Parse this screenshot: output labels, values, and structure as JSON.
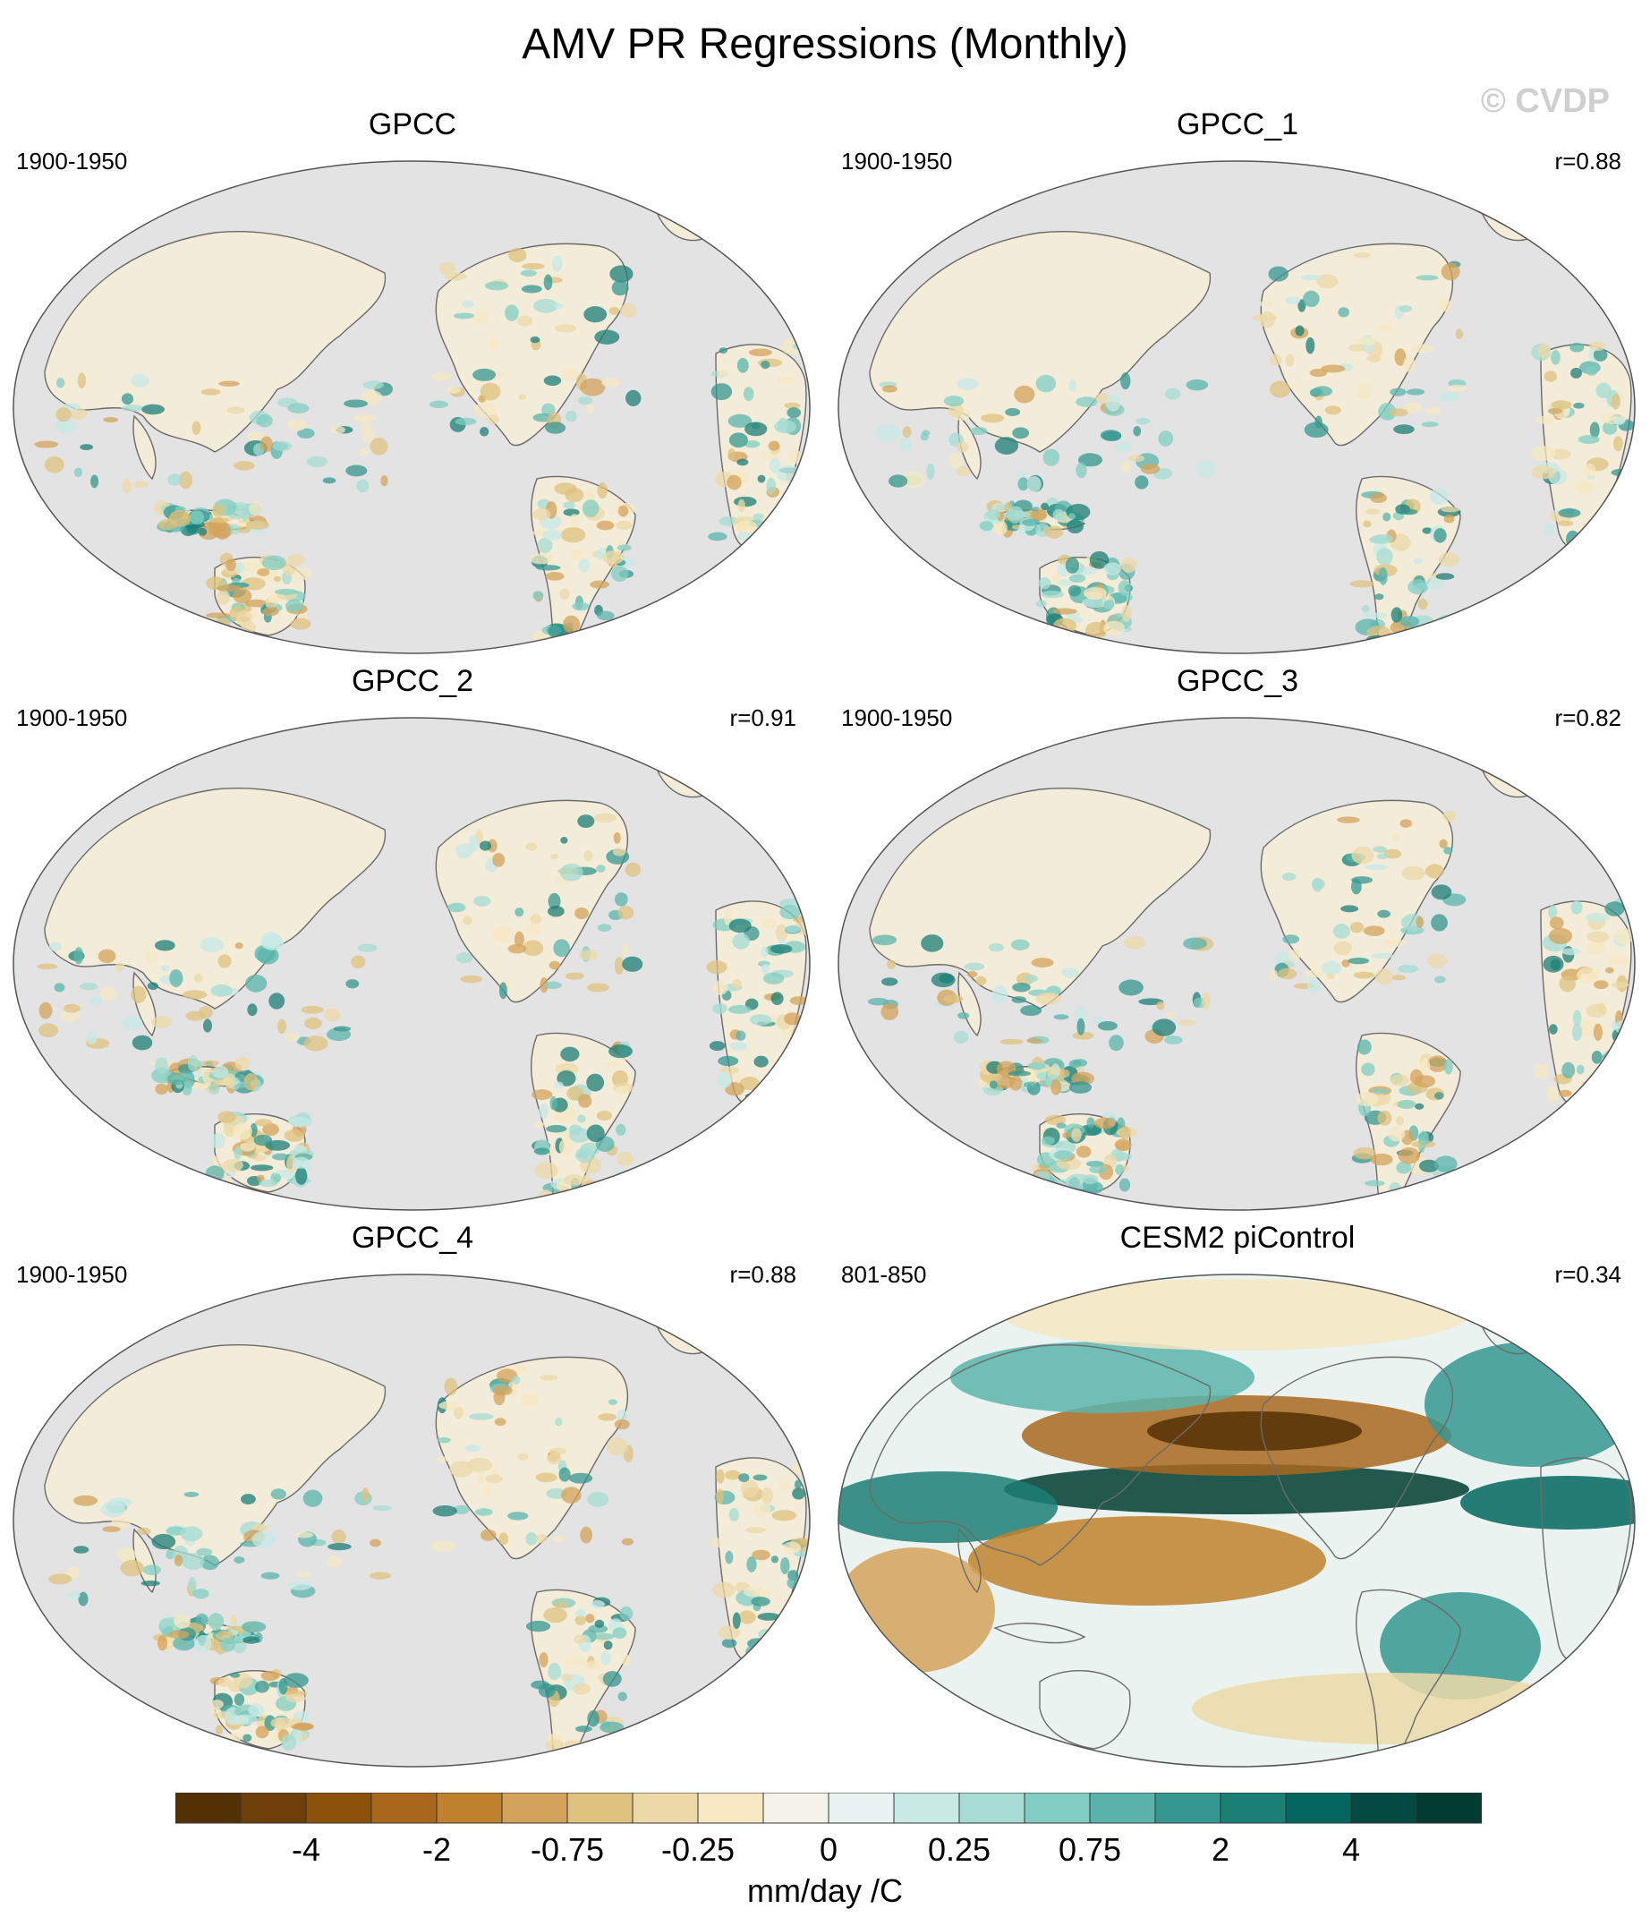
{
  "title": "AMV PR Regressions (Monthly)",
  "watermark": "© CVDP",
  "panels": [
    {
      "name": "GPCC",
      "period": "1900-1950",
      "r": "",
      "pattern": "obs"
    },
    {
      "name": "GPCC_1",
      "period": "1900-1950",
      "r": "r=0.88",
      "pattern": "obs"
    },
    {
      "name": "GPCC_2",
      "period": "1900-1950",
      "r": "r=0.91",
      "pattern": "obs"
    },
    {
      "name": "GPCC_3",
      "period": "1900-1950",
      "r": "r=0.82",
      "pattern": "obs"
    },
    {
      "name": "GPCC_4",
      "period": "1900-1950",
      "r": "r=0.88",
      "pattern": "obs"
    },
    {
      "name": "CESM2 piControl",
      "period": "801-850",
      "r": "r=0.34",
      "pattern": "model"
    }
  ],
  "colorbar": {
    "units": "mm/day /C",
    "tick_labels": [
      "-4",
      "-2",
      "-0.75",
      "-0.25",
      "0",
      "0.25",
      "0.75",
      "2",
      "4"
    ],
    "colors": [
      "#543005",
      "#6f3f09",
      "#8c510a",
      "#a8671d",
      "#bf812d",
      "#d4a35b",
      "#dfc27d",
      "#ecd9a8",
      "#f6e8c3",
      "#f5f2ea",
      "#e9f4f2",
      "#c7eae5",
      "#a6dcd3",
      "#80cdc1",
      "#5ab4ac",
      "#35978f",
      "#1c7f76",
      "#01665e",
      "#024a42",
      "#003c30"
    ]
  },
  "colors": {
    "ocean": "#e3e3e3",
    "coast": "#6b6b6b",
    "dry": "#bf812d",
    "wet": "#35978f"
  }
}
